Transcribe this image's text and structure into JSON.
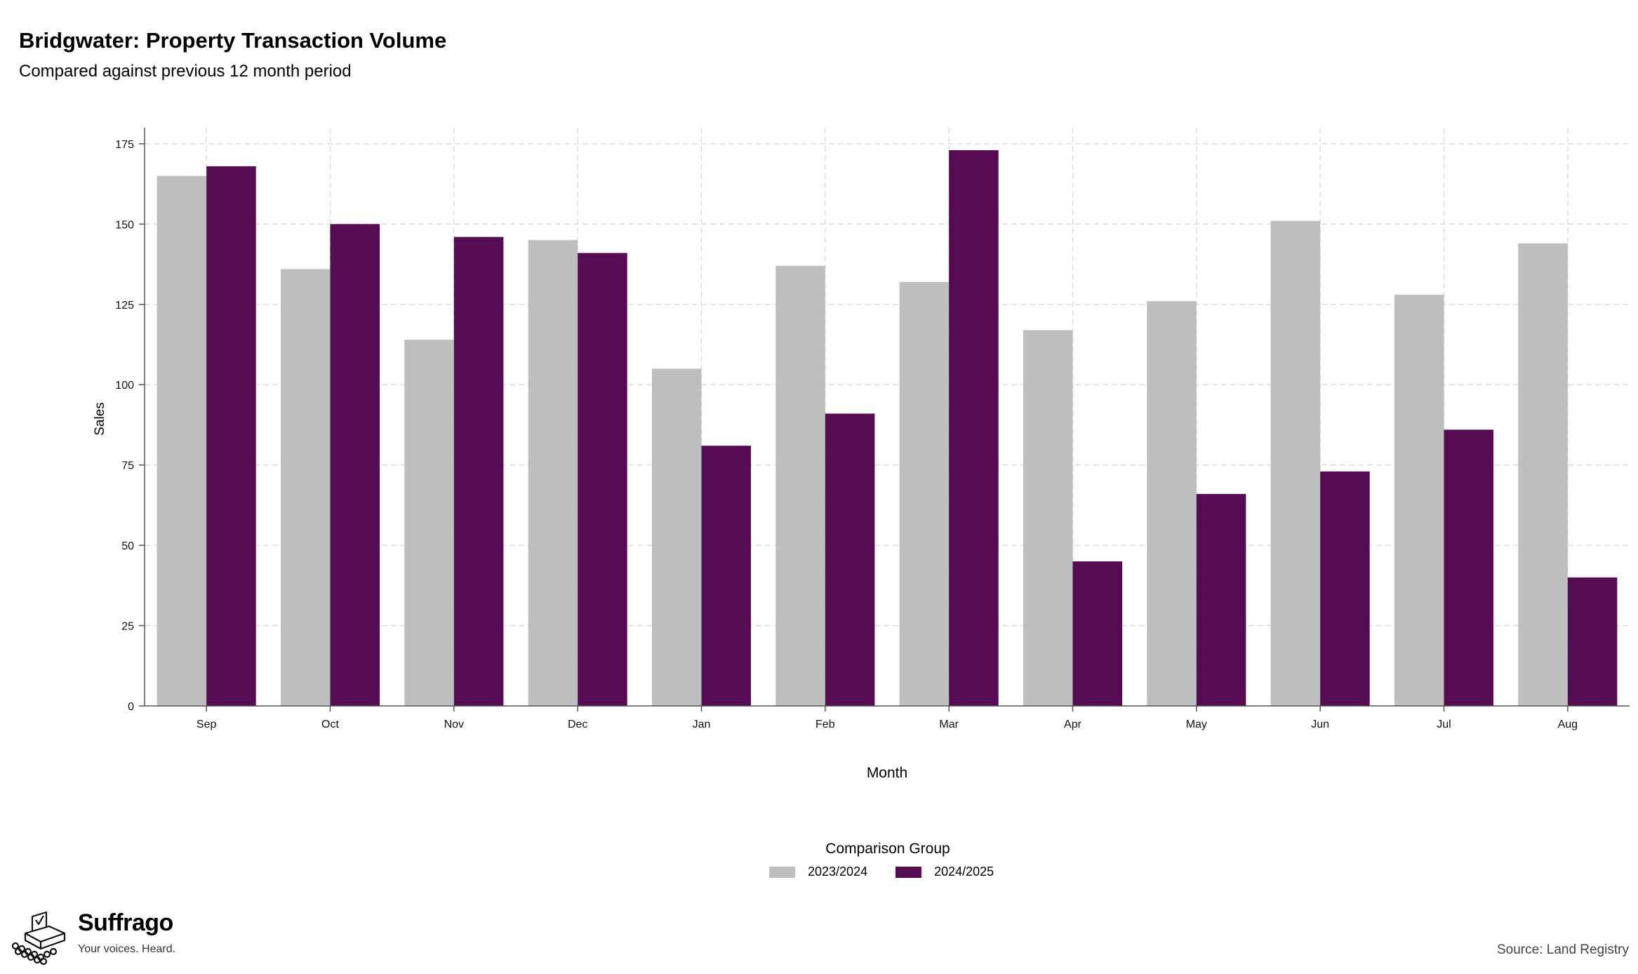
{
  "header": {
    "title": "Bridgwater: Property Transaction Volume",
    "subtitle": "Compared against previous 12 month period"
  },
  "legend": {
    "title": "Comparison Group"
  },
  "branding": {
    "name": "Suffrago",
    "tagline": "Your voices. Heard."
  },
  "footer": {
    "source": "Source: Land Registry"
  },
  "chart_data": {
    "type": "bar",
    "title": "Bridgwater: Property Transaction Volume",
    "subtitle": "Compared against previous 12 month period",
    "xlabel": "Month",
    "ylabel": "Sales",
    "categories": [
      "Sep",
      "Oct",
      "Nov",
      "Dec",
      "Jan",
      "Feb",
      "Mar",
      "Apr",
      "May",
      "Jun",
      "Jul",
      "Aug"
    ],
    "series": [
      {
        "name": "2023/2024",
        "color": "#bebebe",
        "values": [
          165,
          136,
          114,
          145,
          105,
          137,
          132,
          117,
          126,
          151,
          128,
          144
        ]
      },
      {
        "name": "2024/2025",
        "color": "#560c52",
        "values": [
          168,
          150,
          146,
          141,
          81,
          91,
          173,
          45,
          66,
          73,
          86,
          40
        ]
      }
    ],
    "ylim": [
      0,
      180
    ],
    "yticks": [
      0,
      25,
      50,
      75,
      100,
      125,
      150,
      175
    ],
    "grid": true,
    "legend_position": "bottom"
  }
}
